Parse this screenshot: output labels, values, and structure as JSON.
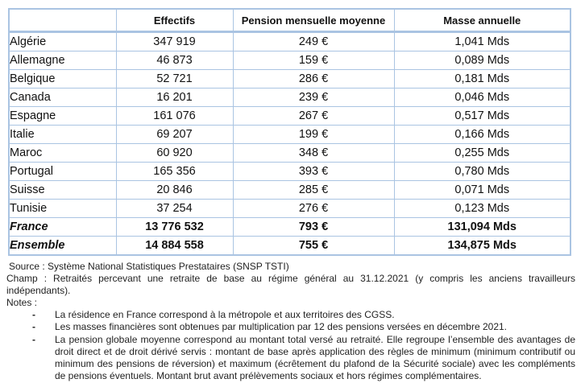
{
  "colors": {
    "table_border": "#aac4e2",
    "text": "#1a1a1a"
  },
  "table": {
    "columns": [
      "",
      "Effectifs",
      "Pension mensuelle moyenne",
      "Masse annuelle"
    ],
    "rows": [
      {
        "pays": "Algérie",
        "effectifs": "347 919",
        "pension": "249 €",
        "masse": "1,041 Mds",
        "emphasis": false
      },
      {
        "pays": "Allemagne",
        "effectifs": "46 873",
        "pension": "159 €",
        "masse": "0,089 Mds",
        "emphasis": false
      },
      {
        "pays": "Belgique",
        "effectifs": "52 721",
        "pension": "286 €",
        "masse": "0,181 Mds",
        "emphasis": false
      },
      {
        "pays": "Canada",
        "effectifs": "16 201",
        "pension": "239 €",
        "masse": "0,046 Mds",
        "emphasis": false
      },
      {
        "pays": "Espagne",
        "effectifs": "161 076",
        "pension": "267 €",
        "masse": "0,517 Mds",
        "emphasis": false
      },
      {
        "pays": "Italie",
        "effectifs": "69 207",
        "pension": "199 €",
        "masse": "0,166 Mds",
        "emphasis": false
      },
      {
        "pays": "Maroc",
        "effectifs": "60 920",
        "pension": "348 €",
        "masse": "0,255 Mds",
        "emphasis": false
      },
      {
        "pays": "Portugal",
        "effectifs": "165 356",
        "pension": "393 €",
        "masse": "0,780 Mds",
        "emphasis": false
      },
      {
        "pays": "Suisse",
        "effectifs": "20 846",
        "pension": "285 €",
        "masse": "0,071 Mds",
        "emphasis": false
      },
      {
        "pays": "Tunisie",
        "effectifs": "37 254",
        "pension": "276 €",
        "masse": "0,123 Mds",
        "emphasis": false
      },
      {
        "pays": "France",
        "effectifs": "13 776 532",
        "pension": "793 €",
        "masse": "131,094 Mds",
        "emphasis": true
      },
      {
        "pays": "Ensemble",
        "effectifs": "14 884 558",
        "pension": "755 €",
        "masse": "134,875 Mds",
        "emphasis": true
      }
    ]
  },
  "footer": {
    "source": "Source : Système National Statistiques Prestataires (SNSP TSTI)",
    "champ": "Champ : Retraités percevant une retraite de base au régime général au 31.12.2021 (y compris les anciens travailleurs indépendants).",
    "notes_label": "Notes :",
    "bullet_char": "-",
    "notes": [
      "La résidence en France correspond à la métropole et aux territoires des CGSS.",
      "Les masses financières sont obtenues par multiplication par 12 des pensions versées en décembre 2021.",
      "La pension globale moyenne correspond au montant total versé au retraité. Elle regroupe l’ensemble des avantages de droit direct et de droit dérivé servis : montant de base après application des règles de minimum (minimum contributif ou minimum des pensions de réversion) et maximum (écrêtement du plafond de la Sécurité sociale) avec les compléments de pensions éventuels. Montant brut avant prélèvements sociaux et hors régimes complémentaires."
    ]
  }
}
